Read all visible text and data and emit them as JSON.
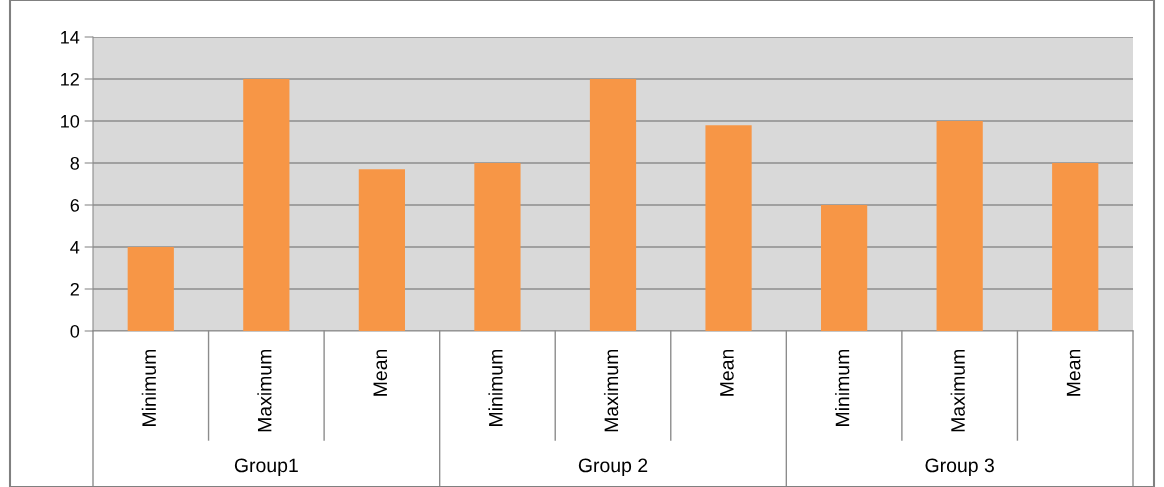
{
  "chart_data": {
    "type": "bar",
    "categories": [
      "Minimum",
      "Maximum",
      "Mean",
      "Minimum",
      "Maximum",
      "Mean",
      "Minimum",
      "Maximum",
      "Mean"
    ],
    "values": [
      4,
      12,
      7.7,
      8,
      12,
      9.8,
      6,
      10,
      8
    ],
    "color": "#f79646",
    "ylim": [
      0,
      14
    ],
    "yticks": [
      0,
      2,
      4,
      6,
      8,
      10,
      12,
      14
    ],
    "grid": "y",
    "annotations": [
      "Group1",
      "Group 2",
      "Group 3"
    ]
  }
}
